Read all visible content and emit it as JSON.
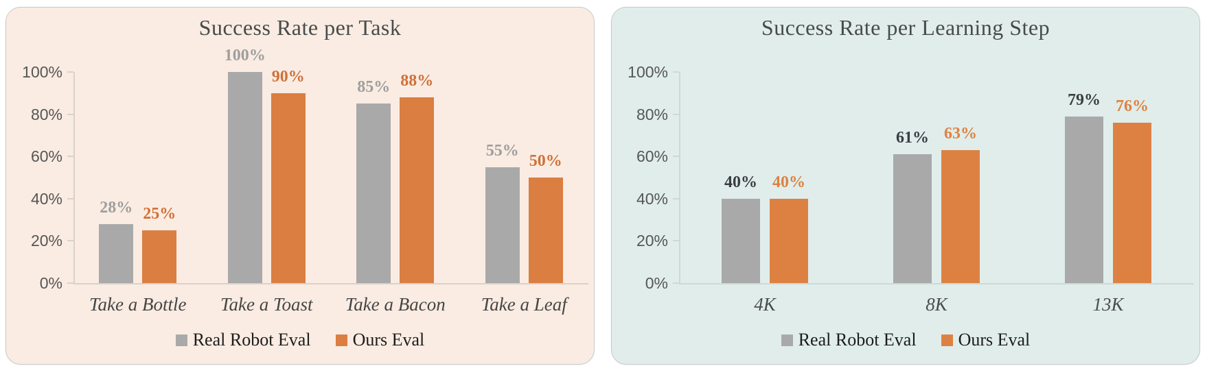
{
  "chart_data": [
    {
      "type": "bar",
      "title": "Success Rate per Task",
      "categories": [
        "Take a Bottle",
        "Take a Toast",
        "Take a Bacon",
        "Take a Leaf"
      ],
      "series": [
        {
          "name": "Real Robot Eval",
          "color": "#A9A9A9",
          "label_color": "#9E9E9E",
          "values": [
            28,
            100,
            85,
            55
          ]
        },
        {
          "name": "Ours Eval",
          "color": "#DB7E41",
          "label_color": "#CF7139",
          "values": [
            25,
            90,
            88,
            50
          ]
        }
      ],
      "value_suffix": "%",
      "y_tick_values": [
        0,
        20,
        40,
        60,
        80,
        100
      ],
      "y_tick_labels": [
        "0%",
        "20%",
        "40%",
        "60%",
        "80%",
        "100%"
      ],
      "ylim": [
        0,
        100
      ],
      "grid": false,
      "legend_position": "bottom",
      "panel_bg": "#FAECE2",
      "title_color": "#474B4C",
      "axis_color": "#D8D2CC",
      "tick_label_color": "#565656",
      "category_label_color": "#454545",
      "legend_text_color": "#1C1C1C"
    },
    {
      "type": "bar",
      "title": "Success Rate per Learning Step",
      "categories": [
        "4K",
        "8K",
        "13K"
      ],
      "series": [
        {
          "name": "Real Robot Eval",
          "color": "#A9A9A9",
          "label_color": "#3A3D3F",
          "values": [
            40,
            61,
            79
          ]
        },
        {
          "name": "Ours Eval",
          "color": "#DD8143",
          "label_color": "#DF8140",
          "values": [
            40,
            63,
            76
          ]
        }
      ],
      "value_suffix": "%",
      "y_tick_values": [
        0,
        20,
        40,
        60,
        80,
        100
      ],
      "y_tick_labels": [
        "0%",
        "20%",
        "40%",
        "60%",
        "80%",
        "100%"
      ],
      "ylim": [
        0,
        100
      ],
      "grid": false,
      "legend_position": "bottom",
      "panel_bg": "#E0EDEB",
      "title_color": "#474B4C",
      "axis_color": "#CDD9D6",
      "tick_label_color": "#565656",
      "category_label_color": "#4A4D4D",
      "legend_text_color": "#1C1C1C"
    }
  ]
}
